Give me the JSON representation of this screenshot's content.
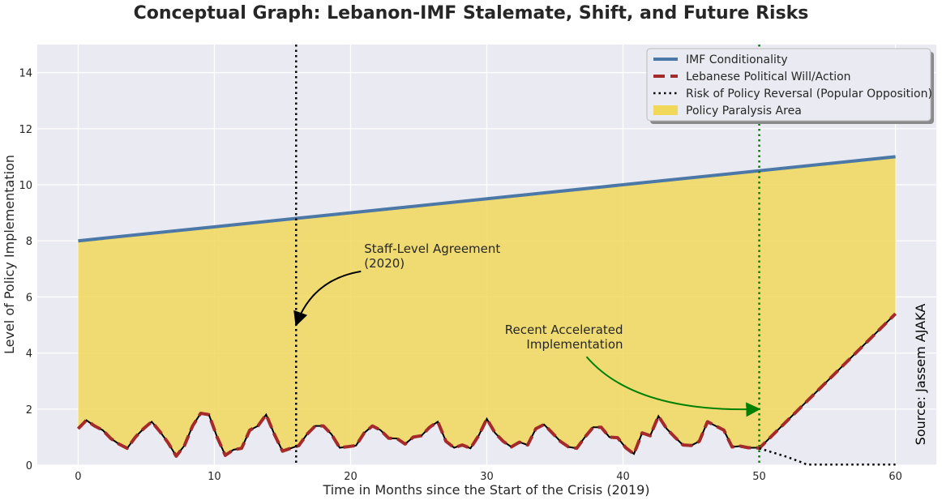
{
  "chart_data": {
    "type": "line",
    "title": "Conceptual Graph: Lebanon-IMF Stalemate, Shift, and Future Risks",
    "xlabel": "Time in Months since the Start of the Crisis (2019)",
    "ylabel": "Level of Policy Implementation",
    "xlim": [
      -3,
      63
    ],
    "ylim": [
      0,
      15
    ],
    "xticks": [
      0,
      10,
      20,
      30,
      40,
      50,
      60
    ],
    "yticks": [
      0,
      2,
      4,
      6,
      8,
      10,
      12,
      14
    ],
    "grid": true,
    "legend_position": "top-right",
    "series": [
      {
        "name": "IMF Conditionality",
        "style": "solid",
        "color": "#4c78a8",
        "x": [
          0,
          60
        ],
        "y": [
          8,
          11
        ]
      },
      {
        "name": "Lebanese Political Will/Action",
        "style": "dashed",
        "color": "#a52a2a",
        "x": [
          0,
          0.6,
          1.2,
          1.8,
          2.4,
          3,
          3.6,
          4.2,
          4.8,
          5.4,
          6,
          6.6,
          7.2,
          7.8,
          8.4,
          9,
          9.6,
          10.2,
          10.8,
          11.4,
          12,
          12.6,
          13.2,
          13.8,
          14.4,
          15,
          15.6,
          16.2,
          16.8,
          17.4,
          18,
          18.6,
          19.2,
          19.8,
          20.4,
          21,
          21.6,
          22.2,
          22.8,
          23.4,
          24,
          24.6,
          25.2,
          25.8,
          26.4,
          27,
          27.6,
          28.2,
          28.8,
          29.4,
          30,
          30.6,
          31.2,
          31.8,
          32.4,
          33,
          33.6,
          34.2,
          34.8,
          35.4,
          36,
          36.6,
          37.2,
          37.8,
          38.4,
          39,
          39.6,
          40.2,
          40.8,
          41.4,
          42,
          42.6,
          43.2,
          43.8,
          44.4,
          45,
          45.6,
          46.2,
          46.8,
          47.4,
          48,
          48.6,
          49.2,
          49.8,
          50,
          60
        ],
        "y": [
          1.3,
          1.6,
          1.4,
          1.25,
          0.95,
          0.75,
          0.6,
          1.0,
          1.3,
          1.55,
          1.2,
          0.8,
          0.32,
          0.7,
          1.4,
          1.85,
          1.8,
          1.0,
          0.35,
          0.55,
          0.6,
          1.25,
          1.4,
          1.8,
          1.1,
          0.5,
          0.6,
          0.7,
          1.1,
          1.4,
          1.4,
          1.1,
          0.62,
          0.66,
          0.7,
          1.15,
          1.4,
          1.25,
          0.96,
          0.95,
          0.75,
          1.0,
          1.05,
          1.35,
          1.55,
          0.85,
          0.62,
          0.72,
          0.6,
          1.05,
          1.65,
          1.15,
          0.85,
          0.65,
          0.82,
          0.72,
          1.3,
          1.45,
          1.15,
          0.85,
          0.65,
          0.6,
          1.0,
          1.35,
          1.35,
          1.0,
          0.98,
          0.62,
          0.4,
          1.15,
          1.05,
          1.75,
          1.3,
          1.0,
          0.72,
          0.7,
          0.85,
          1.55,
          1.4,
          1.25,
          0.65,
          0.68,
          0.62,
          0.62,
          0.6,
          5.4
        ]
      },
      {
        "name": "Risk of Policy Reversal (Popular Opposition)",
        "style": "dotted",
        "color": "#000000",
        "x": [
          50,
          51,
          52,
          53,
          53.5,
          56,
          58,
          60
        ],
        "y": [
          0.6,
          0.45,
          0.3,
          0.12,
          0.02,
          0.02,
          0.02,
          0.02
        ]
      }
    ],
    "fill": {
      "name": "Policy Paralysis Area",
      "color": "#f0d85a",
      "between": [
        "IMF Conditionality",
        "Lebanese Political Will/Action"
      ]
    },
    "vlines": [
      {
        "x": 16,
        "color": "#000000",
        "style": "dotted"
      },
      {
        "x": 50,
        "color": "#008000",
        "style": "dotted"
      }
    ],
    "annotations": [
      {
        "lines": [
          "Staff-Level Agreement",
          "(2020)"
        ],
        "text_at": [
          21,
          7.2
        ],
        "arrow_to": [
          16,
          5
        ],
        "color": "#000000"
      },
      {
        "lines": [
          "Recent Accelerated",
          "Implementation"
        ],
        "text_at": [
          40,
          4.3
        ],
        "arrow_to": [
          50,
          2
        ],
        "color": "#008000",
        "align": "end"
      }
    ],
    "source_text": "Source: Jassem AJAKA"
  }
}
